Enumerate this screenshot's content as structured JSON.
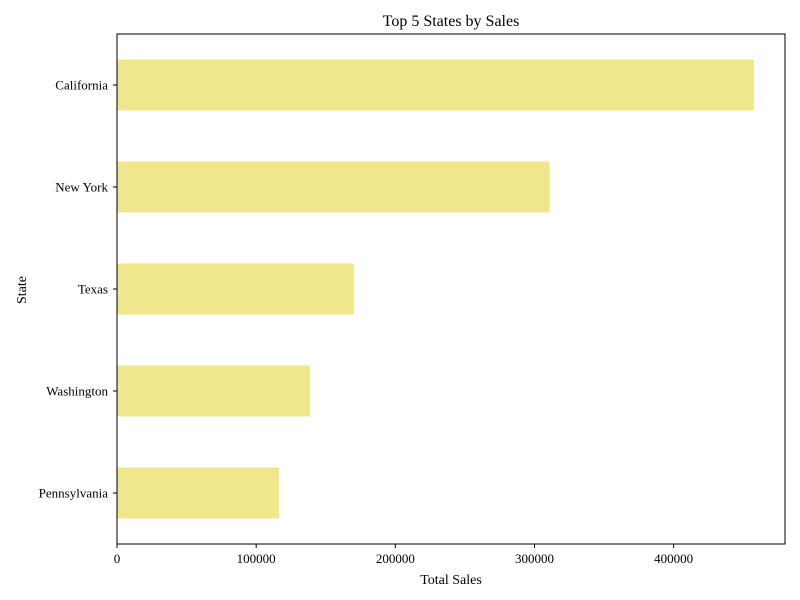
{
  "chart_data": {
    "type": "bar",
    "orientation": "horizontal",
    "title": "Top 5 States by Sales",
    "xlabel": "Total Sales",
    "ylabel": "State",
    "categories": [
      "California",
      "New York",
      "Texas",
      "Washington",
      "Pennsylvania"
    ],
    "values": [
      457688,
      310876,
      170188,
      138641,
      116512
    ],
    "xlim": [
      0,
      480000
    ],
    "xticks": [
      0,
      100000,
      200000,
      300000,
      400000
    ],
    "xtick_labels": [
      "0",
      "100000",
      "200000",
      "300000",
      "400000"
    ],
    "grid": false,
    "legend": "none",
    "bar_color": "#f0e68c"
  }
}
